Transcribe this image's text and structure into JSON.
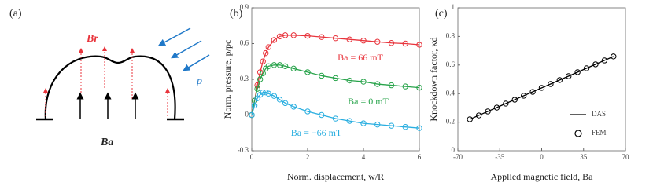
{
  "diagram": {
    "label": "(a)",
    "labels": [
      "Br",
      "p",
      "Ba"
    ]
  },
  "chart_data": [
    {
      "type": "line",
      "label": "(b)",
      "x_label": "Norm. displacement, w/R",
      "y_label": "Norm. pressure, p/pc",
      "xlim": [
        0,
        6
      ],
      "xticks": [
        0,
        2,
        4,
        6
      ],
      "ylim": [
        -0.3,
        0.9
      ],
      "yticks": [
        -0.3,
        0,
        0.3,
        0.6,
        0.9
      ],
      "x": [
        0,
        0.1,
        0.2,
        0.3,
        0.4,
        0.5,
        0.6,
        0.8,
        1.0,
        1.2,
        1.5,
        2,
        2.5,
        3,
        3.5,
        4,
        4.5,
        5,
        5.5,
        6
      ],
      "series": [
        {
          "name": "Ba = 66 mT",
          "color": "#e8343c",
          "line": true,
          "markers": true,
          "values": [
            0,
            0.12,
            0.25,
            0.36,
            0.45,
            0.52,
            0.57,
            0.63,
            0.66,
            0.67,
            0.67,
            0.665,
            0.655,
            0.645,
            0.635,
            0.625,
            0.615,
            0.605,
            0.6,
            0.59
          ]
        },
        {
          "name": "Ba = 0 mT",
          "color": "#27a34a",
          "line": true,
          "markers": true,
          "values": [
            0,
            0.12,
            0.22,
            0.3,
            0.35,
            0.39,
            0.41,
            0.42,
            0.42,
            0.41,
            0.39,
            0.36,
            0.33,
            0.31,
            0.29,
            0.28,
            0.26,
            0.25,
            0.24,
            0.23
          ]
        },
        {
          "name": "Ba = −66 mT",
          "color": "#29aee0",
          "line": true,
          "markers": true,
          "values": [
            0,
            0.08,
            0.14,
            0.17,
            0.19,
            0.19,
            0.18,
            0.16,
            0.13,
            0.1,
            0.07,
            0.03,
            0,
            -0.03,
            -0.05,
            -0.07,
            -0.08,
            -0.09,
            -0.1,
            -0.11
          ]
        }
      ]
    },
    {
      "type": "line",
      "label": "(c)",
      "x_label": "Applied magnetic field, Ba",
      "y_label": "Knockdown factor, κd",
      "xlim": [
        -70,
        70
      ],
      "xticks": [
        -70,
        -35,
        0,
        35,
        70
      ],
      "ylim": [
        0,
        1
      ],
      "yticks": [
        0,
        0.2,
        0.4,
        0.6,
        0.8,
        1
      ],
      "legend": "lower right",
      "series": [
        {
          "name": "DAS",
          "color": "#000000",
          "line": true,
          "markers": false,
          "x": [
            -60,
            60
          ],
          "values": [
            0.22,
            0.66
          ]
        },
        {
          "name": "FEM",
          "color": "#000000",
          "line": false,
          "markers": true,
          "x": [
            -60,
            -52.5,
            -45,
            -37.5,
            -30,
            -22.5,
            -15,
            -7.5,
            0,
            7.5,
            15,
            22.5,
            30,
            37.5,
            45,
            52.5,
            60
          ],
          "values": [
            0.22,
            0.247,
            0.275,
            0.302,
            0.33,
            0.357,
            0.385,
            0.412,
            0.44,
            0.467,
            0.495,
            0.522,
            0.55,
            0.577,
            0.605,
            0.632,
            0.66
          ]
        }
      ]
    }
  ]
}
